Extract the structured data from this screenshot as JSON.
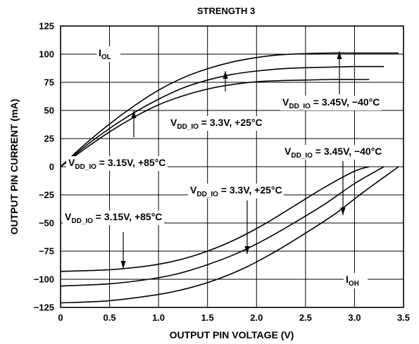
{
  "chart_data": {
    "type": "line",
    "title": "STRENGTH 3",
    "xlabel": "OUTPUT PIN VOLTAGE (V)",
    "ylabel": "OUTPUT PIN CURRENT (mA)",
    "xlim": [
      0,
      3.5
    ],
    "ylim": [
      -125,
      125
    ],
    "xticks": [
      "0",
      "0.5",
      "1.0",
      "1.5",
      "2.0",
      "2.5",
      "3.0",
      "3.5"
    ],
    "yticks": [
      "125",
      "100",
      "75",
      "50",
      "25",
      "0",
      "−25",
      "−50",
      "−75",
      "−100",
      "−125"
    ],
    "grid": true,
    "series": [
      {
        "name": "V_DD_IO = 3.45V, −40°C",
        "group": "IOL",
        "x": [
          0,
          0.25,
          0.5,
          0.75,
          1.0,
          1.25,
          1.5,
          1.75,
          2.0,
          2.25,
          2.5,
          2.75,
          3.0,
          3.25,
          3.45
        ],
        "y": [
          0,
          20,
          38,
          54,
          68,
          79,
          87,
          93,
          97,
          99.5,
          100.5,
          101,
          101,
          101,
          101
        ]
      },
      {
        "name": "V_DD_IO = 3.3V, +25°C",
        "group": "IOL",
        "x": [
          0,
          0.25,
          0.5,
          0.75,
          1.0,
          1.25,
          1.5,
          1.75,
          2.0,
          2.25,
          2.5,
          2.75,
          3.0,
          3.3
        ],
        "y": [
          0,
          18,
          34,
          48,
          60,
          70,
          77,
          82,
          85,
          87,
          88,
          88.5,
          89,
          89
        ]
      },
      {
        "name": "V_DD_IO = 3.15V, +85°C",
        "group": "IOL",
        "x": [
          0,
          0.25,
          0.5,
          0.75,
          1.0,
          1.25,
          1.5,
          1.75,
          2.0,
          2.25,
          2.5,
          2.75,
          3.0,
          3.15
        ],
        "y": [
          0,
          16,
          31,
          44,
          55,
          63,
          69,
          73,
          75.5,
          76.5,
          77,
          77.5,
          77.5,
          77.5
        ]
      },
      {
        "name": "V_DD_IO = 3.15V, +85°C",
        "group": "IOH",
        "x": [
          0,
          0.5,
          0.9,
          1.2,
          1.5,
          1.8,
          2.1,
          2.4,
          2.7,
          3.0,
          3.15
        ],
        "y": [
          -93,
          -91.5,
          -88,
          -83,
          -75,
          -64,
          -50,
          -34,
          -18,
          -4,
          0
        ]
      },
      {
        "name": "V_DD_IO = 3.3V, +25°C",
        "group": "IOH",
        "x": [
          0,
          0.5,
          0.9,
          1.2,
          1.5,
          1.8,
          2.1,
          2.4,
          2.7,
          3.0,
          3.3
        ],
        "y": [
          -106,
          -104,
          -100,
          -95,
          -87,
          -77,
          -64,
          -49,
          -33,
          -15,
          0
        ]
      },
      {
        "name": "V_DD_IO = 3.45V, −40°C",
        "group": "IOH",
        "x": [
          0,
          0.5,
          1.0,
          1.3,
          1.6,
          1.9,
          2.2,
          2.5,
          2.8,
          3.1,
          3.45
        ],
        "y": [
          -121,
          -119,
          -113.5,
          -108,
          -100,
          -89,
          -75,
          -59,
          -42,
          -22,
          0
        ]
      }
    ],
    "annotations": [
      {
        "main": "V",
        "sub": "DD_IO",
        "rest": " = 3.45V, −40°C",
        "anchor": "upper IOL"
      },
      {
        "main": "V",
        "sub": "DD_IO",
        "rest": " = 3.3V, +25°C",
        "anchor": "middle IOL"
      },
      {
        "main": "V",
        "sub": "DD_IO",
        "rest": " = 3.15V, +85°C",
        "anchor": "lower IOL"
      },
      {
        "main": "V",
        "sub": "DD_IO",
        "rest": " = 3.45V, −40°C",
        "anchor": "lower IOH"
      },
      {
        "main": "V",
        "sub": "DD_IO",
        "rest": " = 3.3V, +25°C",
        "anchor": "middle IOH"
      },
      {
        "main": "V",
        "sub": "DD_IO",
        "rest": " = 3.15V, +85°C",
        "anchor": "upper IOH"
      }
    ],
    "curve_labels": [
      {
        "main": "I",
        "sub": "OL"
      },
      {
        "main": "I",
        "sub": "OH"
      }
    ]
  }
}
